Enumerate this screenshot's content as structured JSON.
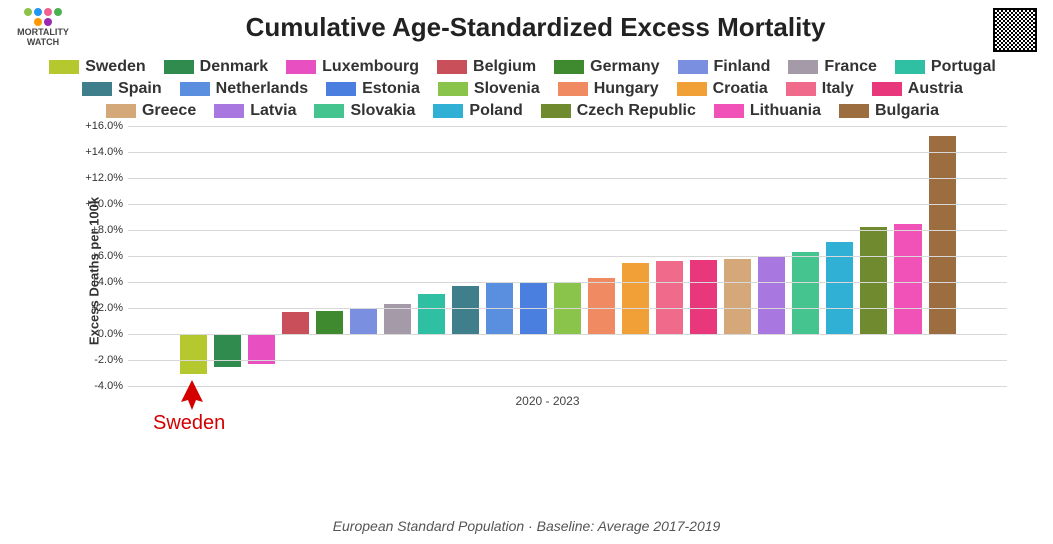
{
  "logo": {
    "line1": "MORTALITY",
    "line2": "WATCH",
    "dot_colors": [
      "#8bc34a",
      "#2196f3",
      "#f06292",
      "#4caf50",
      "#ff9800",
      "#9c27b0"
    ]
  },
  "title": "Cumulative Age-Standardized Excess Mortality",
  "chart": {
    "type": "bar",
    "ylabel": "Excess Deaths per 100k",
    "xlabel": "2020 - 2023",
    "ylim": [
      -4.0,
      16.0
    ],
    "ytick_step": 2.0,
    "ytick_prefix": "+",
    "ytick_suffix": "%",
    "background_color": "#ffffff",
    "grid_color": "#d8d8d8",
    "bar_width": 0.9,
    "label_fontsize": 13,
    "tick_fontsize": 11,
    "series": [
      {
        "label": "Sweden",
        "value": -3.1,
        "color": "#b5c92f"
      },
      {
        "label": "Denmark",
        "value": -2.5,
        "color": "#2f8b4e"
      },
      {
        "label": "Luxembourg",
        "value": -2.3,
        "color": "#e84fc0"
      },
      {
        "label": "Belgium",
        "value": 1.7,
        "color": "#c94f5a"
      },
      {
        "label": "Germany",
        "value": 1.8,
        "color": "#3f8a2e"
      },
      {
        "label": "Finland",
        "value": 1.9,
        "color": "#7a8fe0"
      },
      {
        "label": "France",
        "value": 2.3,
        "color": "#a59aa7"
      },
      {
        "label": "Portugal",
        "value": 3.1,
        "color": "#2fbfa3"
      },
      {
        "label": "Spain",
        "value": 3.7,
        "color": "#3f7f8c"
      },
      {
        "label": "Netherlands",
        "value": 3.9,
        "color": "#5a8fe0"
      },
      {
        "label": "Estonia",
        "value": 4.0,
        "color": "#4a7fe0"
      },
      {
        "label": "Slovenia",
        "value": 4.0,
        "color": "#8bc44a"
      },
      {
        "label": "Hungary",
        "value": 4.3,
        "color": "#f08a63"
      },
      {
        "label": "Croatia",
        "value": 5.5,
        "color": "#f0a037"
      },
      {
        "label": "Italy",
        "value": 5.6,
        "color": "#f06a8c"
      },
      {
        "label": "Austria",
        "value": 5.7,
        "color": "#e8377a"
      },
      {
        "label": "Greece",
        "value": 5.8,
        "color": "#d4a878"
      },
      {
        "label": "Latvia",
        "value": 6.0,
        "color": "#a878e0"
      },
      {
        "label": "Slovakia",
        "value": 6.3,
        "color": "#46c490"
      },
      {
        "label": "Poland",
        "value": 7.1,
        "color": "#2fb0d4"
      },
      {
        "label": "Czech Republic",
        "value": 8.2,
        "color": "#6f8a2f"
      },
      {
        "label": "Lithuania",
        "value": 8.5,
        "color": "#f052b8"
      },
      {
        "label": "Bulgaria",
        "value": 15.2,
        "color": "#9c6d3f"
      }
    ]
  },
  "annotation": {
    "label": "Sweden",
    "target_index": 0,
    "color": "#d40000",
    "arrow_glyph": "⌃"
  },
  "footer": "European Standard Population · Baseline: Average 2017-2019"
}
